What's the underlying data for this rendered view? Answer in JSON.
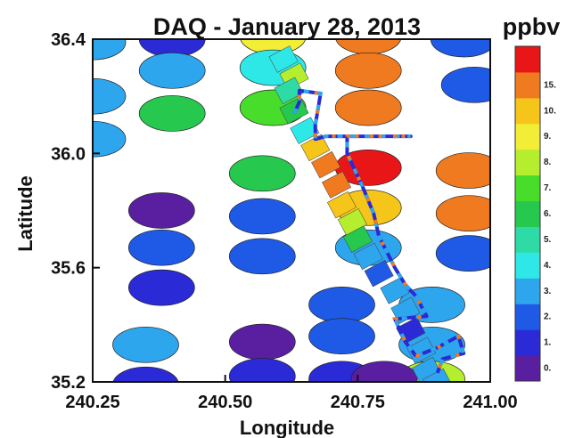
{
  "chart_data": {
    "type": "scatter",
    "title": "DAQ - January 28, 2013",
    "xlabel": "Longitude",
    "ylabel": "Latitude",
    "xlim": [
      240.25,
      241.0
    ],
    "ylim": [
      35.2,
      36.4
    ],
    "x_ticks": [
      "240.25",
      "240.50",
      "240.75",
      "241.00"
    ],
    "y_ticks": [
      "35.2",
      "35.6",
      "36.0",
      "36.4"
    ],
    "colorbar": {
      "title": "ppbv",
      "labels": [
        "0.",
        "1.",
        "2.",
        "3.",
        "4.",
        "5.",
        "6.",
        "7.",
        "8.",
        "9.",
        "10.",
        "15."
      ],
      "colors": [
        "#5a1fa0",
        "#2a2ad6",
        "#1e5ae6",
        "#2ea6ee",
        "#2ee8e8",
        "#2edba6",
        "#26c84e",
        "#48dd2a",
        "#b4ee2e",
        "#f2ee36",
        "#f5c51a",
        "#f07a20",
        "#e81616"
      ]
    },
    "sites_label": "site ellipses colored by ppbv bin (0 = lowest bin ... 12 = highest bin)",
    "sites": [
      {
        "x": 240.25,
        "y": 36.39,
        "bin": 3
      },
      {
        "x": 240.25,
        "y": 36.2,
        "bin": 3
      },
      {
        "x": 240.25,
        "y": 36.05,
        "bin": 3
      },
      {
        "x": 240.4,
        "y": 36.4,
        "bin": 1
      },
      {
        "x": 240.4,
        "y": 36.29,
        "bin": 3
      },
      {
        "x": 240.4,
        "y": 36.14,
        "bin": 6
      },
      {
        "x": 240.38,
        "y": 35.8,
        "bin": 0
      },
      {
        "x": 240.38,
        "y": 35.67,
        "bin": 2
      },
      {
        "x": 240.38,
        "y": 35.53,
        "bin": 1
      },
      {
        "x": 240.35,
        "y": 35.33,
        "bin": 3
      },
      {
        "x": 240.35,
        "y": 35.19,
        "bin": 1
      },
      {
        "x": 240.59,
        "y": 36.41,
        "bin": 9
      },
      {
        "x": 240.59,
        "y": 36.3,
        "bin": 4
      },
      {
        "x": 240.59,
        "y": 36.16,
        "bin": 7
      },
      {
        "x": 240.57,
        "y": 35.93,
        "bin": 6
      },
      {
        "x": 240.57,
        "y": 35.78,
        "bin": 2
      },
      {
        "x": 240.57,
        "y": 35.64,
        "bin": 2
      },
      {
        "x": 240.57,
        "y": 35.34,
        "bin": 0
      },
      {
        "x": 240.57,
        "y": 35.22,
        "bin": 1
      },
      {
        "x": 240.77,
        "y": 36.41,
        "bin": 11
      },
      {
        "x": 240.77,
        "y": 36.29,
        "bin": 11
      },
      {
        "x": 240.77,
        "y": 36.16,
        "bin": 11
      },
      {
        "x": 240.77,
        "y": 35.95,
        "bin": 12
      },
      {
        "x": 240.77,
        "y": 35.81,
        "bin": 10
      },
      {
        "x": 240.77,
        "y": 35.67,
        "bin": 3
      },
      {
        "x": 240.72,
        "y": 35.47,
        "bin": 2
      },
      {
        "x": 240.72,
        "y": 35.36,
        "bin": 2
      },
      {
        "x": 240.72,
        "y": 35.21,
        "bin": 1
      },
      {
        "x": 240.72,
        "y": 35.11,
        "bin": 0
      },
      {
        "x": 240.95,
        "y": 36.4,
        "bin": 2
      },
      {
        "x": 240.97,
        "y": 36.24,
        "bin": 2
      },
      {
        "x": 240.96,
        "y": 35.94,
        "bin": 11
      },
      {
        "x": 240.96,
        "y": 35.79,
        "bin": 11
      },
      {
        "x": 240.96,
        "y": 35.65,
        "bin": 2
      },
      {
        "x": 240.89,
        "y": 35.47,
        "bin": 3
      },
      {
        "x": 240.89,
        "y": 35.33,
        "bin": 3
      },
      {
        "x": 240.89,
        "y": 35.21,
        "bin": 8
      },
      {
        "x": 240.8,
        "y": 35.21,
        "bin": 0
      }
    ],
    "track_patches": [
      {
        "x": 240.61,
        "y": 36.33,
        "bin": 4
      },
      {
        "x": 240.63,
        "y": 36.27,
        "bin": 8
      },
      {
        "x": 240.62,
        "y": 36.22,
        "bin": 5
      },
      {
        "x": 240.63,
        "y": 36.15,
        "bin": 6
      },
      {
        "x": 240.65,
        "y": 36.08,
        "bin": 4
      },
      {
        "x": 240.67,
        "y": 36.02,
        "bin": 10
      },
      {
        "x": 240.69,
        "y": 35.96,
        "bin": 11
      },
      {
        "x": 240.71,
        "y": 35.89,
        "bin": 11
      },
      {
        "x": 240.72,
        "y": 35.82,
        "bin": 10
      },
      {
        "x": 240.74,
        "y": 35.76,
        "bin": 8
      },
      {
        "x": 240.75,
        "y": 35.7,
        "bin": 6
      },
      {
        "x": 240.77,
        "y": 35.64,
        "bin": 3
      },
      {
        "x": 240.79,
        "y": 35.58,
        "bin": 2
      },
      {
        "x": 240.82,
        "y": 35.52,
        "bin": 3
      },
      {
        "x": 240.84,
        "y": 35.45,
        "bin": 3
      },
      {
        "x": 240.85,
        "y": 35.38,
        "bin": 1
      },
      {
        "x": 240.87,
        "y": 35.31,
        "bin": 3
      },
      {
        "x": 240.88,
        "y": 35.24,
        "bin": 3
      },
      {
        "x": 240.9,
        "y": 35.2,
        "bin": 3
      }
    ],
    "track_line": [
      {
        "x": 240.63,
        "y": 36.14
      },
      {
        "x": 240.64,
        "y": 36.18
      },
      {
        "x": 240.64,
        "y": 36.22
      },
      {
        "x": 240.68,
        "y": 36.21
      },
      {
        "x": 240.67,
        "y": 36.1
      },
      {
        "x": 240.67,
        "y": 36.05
      },
      {
        "x": 240.69,
        "y": 36.06
      },
      {
        "x": 240.85,
        "y": 36.06
      },
      {
        "x": 240.73,
        "y": 36.06
      },
      {
        "x": 240.73,
        "y": 36.0
      },
      {
        "x": 240.76,
        "y": 35.88
      },
      {
        "x": 240.78,
        "y": 35.79
      },
      {
        "x": 240.79,
        "y": 35.71
      },
      {
        "x": 240.82,
        "y": 35.6
      },
      {
        "x": 240.84,
        "y": 35.54
      },
      {
        "x": 240.86,
        "y": 35.5
      },
      {
        "x": 240.88,
        "y": 35.43
      },
      {
        "x": 240.82,
        "y": 35.42
      },
      {
        "x": 240.84,
        "y": 35.34
      },
      {
        "x": 240.86,
        "y": 35.29
      },
      {
        "x": 240.9,
        "y": 35.32
      },
      {
        "x": 240.94,
        "y": 35.36
      },
      {
        "x": 240.95,
        "y": 35.3
      },
      {
        "x": 240.91,
        "y": 35.28
      },
      {
        "x": 240.9,
        "y": 35.23
      }
    ],
    "grid": false,
    "legend": "colorbar-right"
  }
}
